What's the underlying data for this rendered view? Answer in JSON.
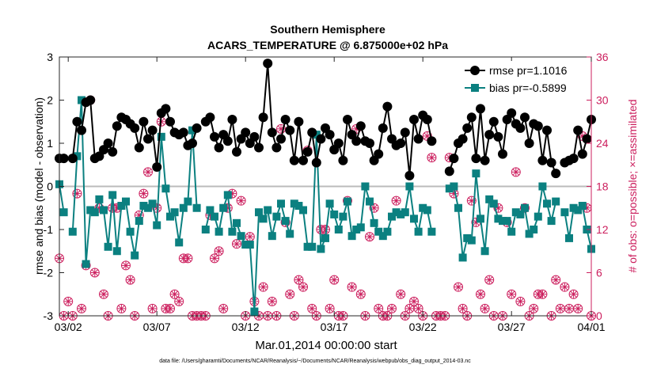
{
  "chart_data": {
    "type": "line",
    "title": "Southern Hemisphere",
    "subtitle": "ACARS_TEMPERATURE @ 6.875000e+02 hPa",
    "xlabel": "Mar.01,2014 00:00:00 start",
    "ylabel": "rmse and bias (model - observation)",
    "ylabel_right": "# of obs: o=possible; ×=assimilated",
    "xlim": [
      1.5,
      31.5
    ],
    "ylim": [
      -3,
      3
    ],
    "ylim_right": [
      0,
      36
    ],
    "x_ticks": [
      2,
      7,
      12,
      17,
      22,
      27,
      32
    ],
    "x_tick_labels": [
      "03/02",
      "03/07",
      "03/12",
      "03/17",
      "03/22",
      "03/27",
      "04/01"
    ],
    "y_ticks": [
      -3,
      -2,
      -1,
      0,
      1,
      2,
      3
    ],
    "y_ticks_right": [
      0,
      6,
      12,
      18,
      24,
      30,
      36
    ],
    "legend_location": "top-right",
    "zero_line": 0,
    "colors": {
      "rmse": "#000000",
      "bias": "#0b8080",
      "obs": "#cc1f5e",
      "zero": "#bbbbbb"
    },
    "series": [
      {
        "name": "rmse pr=1.1016",
        "x": [
          1.5,
          1.75,
          2.0,
          2.25,
          2.5,
          2.75,
          3.0,
          3.25,
          3.5,
          3.75,
          4.0,
          4.25,
          4.5,
          4.75,
          5.0,
          5.25,
          5.5,
          5.75,
          6.0,
          6.25,
          6.5,
          6.75,
          7.0,
          7.25,
          7.5,
          7.75,
          8.0,
          8.25,
          8.5,
          8.75,
          9.0,
          9.25,
          9.5,
          9.75,
          10.0,
          10.25,
          10.5,
          10.75,
          11.0,
          11.25,
          11.5,
          11.75,
          12.0,
          12.25,
          12.5,
          12.75,
          13.0,
          13.25,
          13.5,
          13.75,
          14.0,
          14.25,
          14.5,
          14.75,
          15.0,
          15.25,
          15.5,
          15.75,
          16.0,
          16.25,
          16.5,
          16.75,
          17.0,
          17.25,
          17.5,
          17.75,
          18.0,
          18.25,
          18.5,
          18.75,
          19.0,
          19.25,
          19.5,
          19.75,
          20.0,
          20.25,
          20.5,
          20.75,
          21.0,
          21.25,
          21.5,
          21.75,
          22.0,
          22.25,
          22.5,
          22.75,
          23.0,
          23.25,
          23.5,
          23.75,
          24.0,
          24.25,
          24.5,
          24.75,
          25.0,
          25.25,
          25.5,
          25.75,
          26.0,
          26.25,
          26.5,
          26.75,
          27.0,
          27.25,
          27.5,
          27.75,
          28.0,
          28.25,
          28.5,
          28.75,
          29.0,
          29.25,
          29.5,
          29.75,
          30.0,
          30.25,
          30.5,
          30.75,
          31.0,
          31.25,
          31.5
        ],
        "y": [
          0.65,
          0.65,
          null,
          0.65,
          1.5,
          1.3,
          1.95,
          2.0,
          0.65,
          0.7,
          0.85,
          1.0,
          0.8,
          1.4,
          1.6,
          1.55,
          1.45,
          1.35,
          0.9,
          1.5,
          1.1,
          1.3,
          0.45,
          1.7,
          1.8,
          1.5,
          1.25,
          1.2,
          1.25,
          0.95,
          1.0,
          1.35,
          null,
          1.5,
          1.6,
          1.15,
          0.9,
          1.2,
          1.05,
          1.55,
          0.8,
          1.1,
          1.25,
          1.0,
          1.15,
          0.9,
          1.6,
          2.85,
          1.25,
          0.9,
          1.1,
          1.55,
          1.3,
          0.6,
          1.5,
          0.6,
          0.8,
          1.25,
          0.55,
          1.1,
          1.35,
          1.2,
          0.85,
          1.0,
          0.6,
          1.55,
          1.2,
          1.05,
          1.4,
          1.05,
          1.0,
          0.6,
          0.75,
          1.35,
          1.85,
          1.1,
          0.95,
          1.0,
          1.25,
          0.25,
          1.55,
          1.1,
          1.65,
          1.55,
          1.05,
          null,
          null,
          null,
          0.35,
          0.65,
          1.0,
          1.1,
          1.35,
          1.6,
          0.65,
          1.8,
          0.6,
          1.2,
          1.5,
          1.15,
          0.75,
          1.55,
          1.7,
          1.45,
          1.35,
          1.6,
          1.0,
          1.45,
          1.4,
          0.6,
          1.3,
          0.55,
          0.3,
          null,
          0.55,
          0.6,
          0.65,
          1.3,
          0.75,
          1.1,
          1.55
        ],
        "marker": "circle"
      },
      {
        "name": "bias pr=-0.5899",
        "x": [
          1.5,
          1.75,
          2.0,
          2.25,
          2.5,
          2.75,
          3.0,
          3.25,
          3.5,
          3.75,
          4.0,
          4.25,
          4.5,
          4.75,
          5.0,
          5.25,
          5.5,
          5.75,
          6.0,
          6.25,
          6.5,
          6.75,
          7.0,
          7.25,
          7.5,
          7.75,
          8.0,
          8.25,
          8.5,
          8.75,
          9.0,
          9.25,
          9.5,
          9.75,
          10.0,
          10.25,
          10.5,
          10.75,
          11.0,
          11.25,
          11.5,
          11.75,
          12.0,
          12.25,
          12.5,
          12.75,
          13.0,
          13.25,
          13.5,
          13.75,
          14.0,
          14.25,
          14.5,
          14.75,
          15.0,
          15.25,
          15.5,
          15.75,
          16.0,
          16.25,
          16.5,
          16.75,
          17.0,
          17.25,
          17.5,
          17.75,
          18.0,
          18.25,
          18.5,
          18.75,
          19.0,
          19.25,
          19.5,
          19.75,
          20.0,
          20.25,
          20.5,
          20.75,
          21.0,
          21.25,
          21.5,
          21.75,
          22.0,
          22.25,
          22.5,
          22.75,
          23.0,
          23.25,
          23.5,
          23.75,
          24.0,
          24.25,
          24.5,
          24.75,
          25.0,
          25.25,
          25.5,
          25.75,
          26.0,
          26.25,
          26.5,
          26.75,
          27.0,
          27.25,
          27.5,
          27.75,
          28.0,
          28.25,
          28.5,
          28.75,
          29.0,
          29.25,
          29.5,
          29.75,
          30.0,
          30.25,
          30.5,
          30.75,
          31.0,
          31.25,
          31.5
        ],
        "y": [
          0.05,
          -0.6,
          null,
          -1.05,
          0.7,
          2.0,
          -1.8,
          -0.55,
          -0.6,
          -0.3,
          -0.55,
          -1.4,
          -0.2,
          -1.5,
          -0.45,
          -0.35,
          -1.05,
          -1.6,
          -0.8,
          -0.45,
          -0.5,
          -0.4,
          -0.9,
          1.15,
          -0.05,
          -0.7,
          -0.6,
          -1.3,
          -0.5,
          -0.35,
          1.3,
          -0.5,
          null,
          -1.0,
          -0.55,
          -0.7,
          -1.05,
          -0.5,
          -0.2,
          -1.05,
          -0.85,
          -1.15,
          -1.35,
          -1.35,
          -2.9,
          -0.6,
          -0.75,
          -0.55,
          -1.15,
          -0.7,
          -0.4,
          -0.8,
          -1.1,
          -0.4,
          -0.45,
          -0.55,
          -1.4,
          -1.4,
          1.2,
          -1.45,
          -1.2,
          -0.4,
          -0.65,
          -1.0,
          -0.7,
          -0.35,
          -1.15,
          -1.0,
          -0.95,
          0.0,
          -0.35,
          -0.85,
          -1.05,
          -1.15,
          -1.05,
          -0.7,
          -0.6,
          -0.65,
          -0.6,
          0.0,
          -0.75,
          -1.05,
          -0.5,
          -0.55,
          -1.05,
          null,
          null,
          null,
          -0.05,
          0.0,
          -0.5,
          -1.65,
          -1.2,
          -1.25,
          0.3,
          -0.75,
          -1.5,
          -0.3,
          -0.4,
          -0.75,
          -0.8,
          -0.8,
          -1.05,
          -0.6,
          -0.65,
          -0.5,
          -1.1,
          -1.0,
          -0.7,
          0.0,
          -0.4,
          -0.8,
          -0.35,
          null,
          -0.6,
          -1.2,
          -0.5,
          -0.55,
          -0.45,
          -1.0,
          -1.45
        ],
        "marker": "square"
      },
      {
        "name": "obs possible/assimilated",
        "x": [
          1.5,
          1.75,
          2.0,
          2.25,
          2.5,
          2.75,
          3.0,
          3.25,
          3.5,
          3.75,
          4.0,
          4.25,
          4.5,
          4.75,
          5.0,
          5.25,
          5.5,
          5.75,
          6.0,
          6.25,
          6.5,
          6.75,
          7.0,
          7.25,
          7.5,
          7.75,
          8.0,
          8.25,
          8.5,
          8.75,
          9.0,
          9.25,
          9.5,
          9.75,
          10.0,
          10.25,
          10.5,
          10.75,
          11.0,
          11.25,
          11.5,
          11.75,
          12.0,
          12.25,
          12.5,
          12.75,
          13.0,
          13.25,
          13.5,
          13.75,
          14.0,
          14.25,
          14.5,
          14.75,
          15.0,
          15.25,
          15.5,
          15.75,
          16.0,
          16.25,
          16.5,
          16.75,
          17.0,
          17.25,
          17.5,
          17.75,
          18.0,
          18.25,
          18.5,
          18.75,
          19.0,
          19.25,
          19.5,
          19.75,
          20.0,
          20.25,
          20.5,
          20.75,
          21.0,
          21.25,
          21.5,
          21.75,
          22.0,
          22.25,
          22.5,
          22.75,
          23.0,
          23.25,
          23.5,
          23.75,
          24.0,
          24.25,
          24.5,
          24.75,
          25.0,
          25.25,
          25.5,
          25.75,
          26.0,
          26.25,
          26.5,
          26.75,
          27.0,
          27.25,
          27.5,
          27.75,
          28.0,
          28.25,
          28.5,
          28.75,
          29.0,
          29.25,
          29.5,
          29.75,
          30.0,
          30.25,
          30.5,
          30.75,
          31.0,
          31.25,
          31.5
        ],
        "y": [
          8,
          0,
          2,
          0,
          17,
          1,
          7,
          30,
          6,
          15,
          3,
          0,
          15,
          15,
          1,
          7,
          5,
          0,
          14,
          17,
          20,
          1,
          15,
          27,
          1,
          1,
          3,
          2,
          8,
          8,
          0,
          0,
          0,
          0,
          14,
          8,
          9,
          1,
          15,
          17,
          10,
          16,
          0,
          11,
          2,
          0,
          4,
          0,
          2,
          0,
          26,
          13,
          3,
          0,
          5,
          4,
          23,
          1,
          0,
          12,
          12,
          1,
          5,
          0,
          0,
          16,
          4,
          26,
          3,
          0,
          11,
          15,
          1,
          0,
          0,
          1,
          16,
          3,
          0,
          1,
          2,
          1,
          0,
          25,
          22,
          0,
          0,
          0,
          22,
          17,
          4,
          1,
          0,
          16,
          13,
          3,
          1,
          5,
          0,
          15,
          0,
          13,
          3,
          20,
          2,
          15,
          0,
          1,
          3,
          3,
          34,
          0,
          5,
          1,
          4,
          1,
          3,
          1,
          25,
          15,
          0
        ]
      }
    ],
    "footnote": "data file: /Users/gharamti/Documents/NCAR/Reanalysis/~/Documents/NCAR/Reanalysis/webpub/obs_diag_output_2014-03.nc"
  }
}
